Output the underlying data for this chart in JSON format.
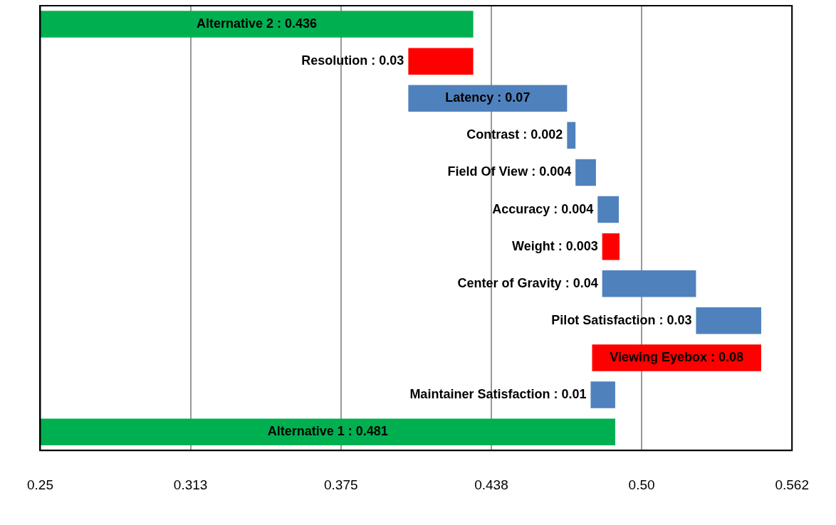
{
  "chart_data": {
    "type": "bar",
    "orientation": "horizontal",
    "categories": [
      "Alternative 2 : 0.436",
      "Resolution : 0.03",
      "Latency : 0.07",
      "Contrast : 0.002",
      "Field Of View : 0.004",
      "Accuracy : 0.004",
      "Weight : 0.003",
      "Center of Gravity : 0.04",
      "Pilot Satisfaction : 0.03",
      "Viewing Eyebox : 0.08",
      "Maintainer Satisfaction : 0.01",
      "Alternative 1 : 0.481"
    ],
    "base": [
      0.25,
      0.43,
      0.403,
      0.469,
      0.4725,
      0.4817,
      0.4908,
      0.4836,
      0.5226,
      0.5497,
      0.4788,
      0.25
    ],
    "values": [
      0.18,
      -0.027,
      0.066,
      0.0035,
      0.0085,
      0.0088,
      -0.0072,
      0.039,
      0.0271,
      -0.0703,
      0.0102,
      0.239
    ],
    "colors": [
      "#00b050",
      "#ff0000",
      "#4f81bd",
      "#4f81bd",
      "#4f81bd",
      "#4f81bd",
      "#ff0000",
      "#4f81bd",
      "#4f81bd",
      "#ff0000",
      "#4f81bd",
      "#00b050"
    ],
    "xlim": [
      0.25,
      0.5625
    ],
    "xticks": [
      {
        "value": 0.25,
        "label": "0.25"
      },
      {
        "value": 0.3125,
        "label": "0.313"
      },
      {
        "value": 0.375,
        "label": "0.375"
      },
      {
        "value": 0.4375,
        "label": "0.438"
      },
      {
        "value": 0.5,
        "label": "0.50"
      },
      {
        "value": 0.5625,
        "label": "0.562"
      }
    ],
    "grid": "x",
    "tick_labels": "x"
  }
}
